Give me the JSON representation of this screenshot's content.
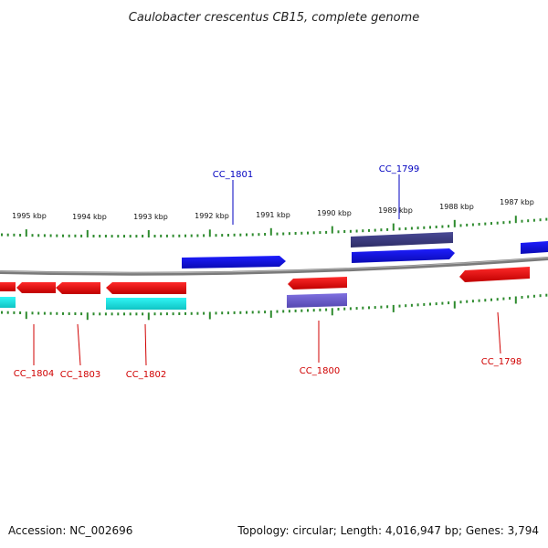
{
  "title": "Caulobacter crescentus CB15, complete genome",
  "footer": {
    "accession": "Accession: NC_002696",
    "summary": "Topology: circular; Length: 4,016,947 bp; Genes: 3,794"
  },
  "colors": {
    "backbone": "#8a8a8a",
    "tick": "#2e8b2e",
    "forward_gene": "#1414e6",
    "forward_gene_alt": "#3c3c82",
    "reverse_gene": "#e61414",
    "reverse_gene_alt": "#6a5acd",
    "rna_gene": "#19e6e6",
    "label_forward": "#0000c0",
    "label_reverse": "#d00000"
  },
  "tick_labels": [
    "1995 kbp",
    "1994 kbp",
    "1993 kbp",
    "1992 kbp",
    "1991 kbp",
    "1990 kbp",
    "1989 kbp",
    "1988 kbp",
    "1987 kbp"
  ],
  "genes": [
    {
      "label": "CC_1804",
      "strand": "reverse"
    },
    {
      "label": "CC_1803",
      "strand": "reverse"
    },
    {
      "label": "CC_1802",
      "strand": "reverse"
    },
    {
      "label": "CC_1801",
      "strand": "forward"
    },
    {
      "label": "CC_1800",
      "strand": "reverse"
    },
    {
      "label": "CC_1799",
      "strand": "forward"
    },
    {
      "label": "CC_1798",
      "strand": "reverse"
    }
  ]
}
